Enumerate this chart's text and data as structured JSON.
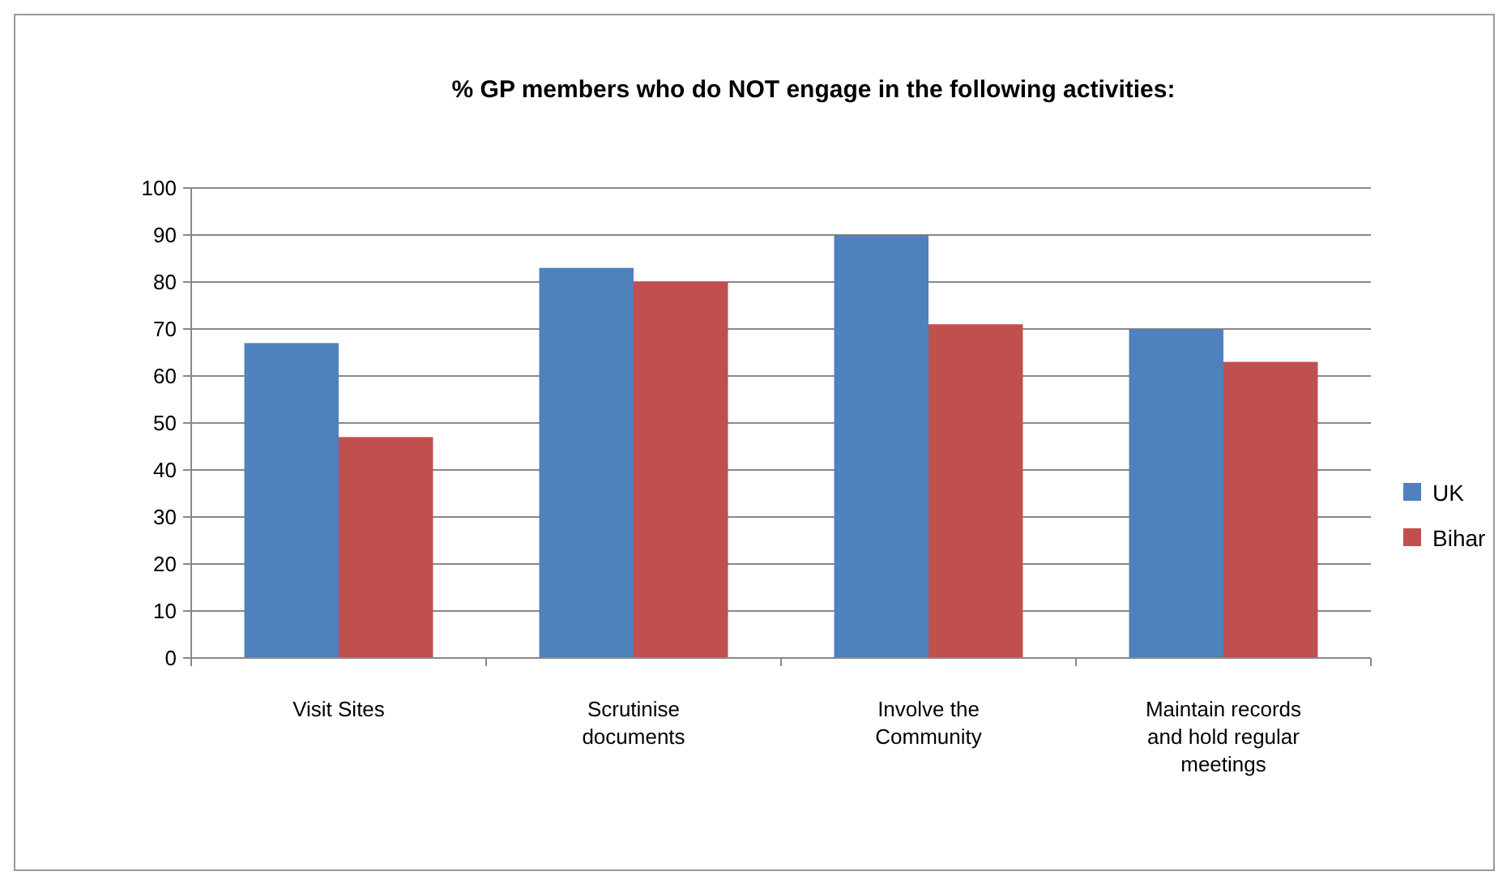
{
  "chart_data": {
    "type": "bar",
    "title": "% GP members who do NOT engage in the following activities:",
    "categories": [
      "Visit Sites",
      "Scrutinise documents",
      "Involve the Community",
      "Maintain records and hold regular meetings"
    ],
    "series": [
      {
        "name": "UK",
        "color": "#4f81bd",
        "values": [
          67,
          83,
          90,
          70
        ]
      },
      {
        "name": "Bihar",
        "color": "#c0504d",
        "values": [
          47,
          80,
          71,
          63
        ]
      }
    ],
    "ylim": [
      0,
      100
    ],
    "yticks": [
      0,
      10,
      20,
      30,
      40,
      50,
      60,
      70,
      80,
      90,
      100
    ],
    "grid": "y",
    "legend": "right"
  }
}
